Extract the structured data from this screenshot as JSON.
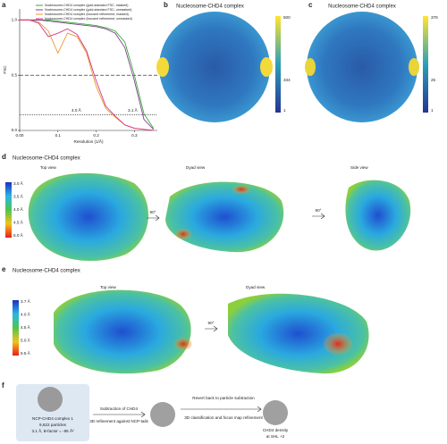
{
  "letters": [
    "a",
    "b",
    "c",
    "d",
    "e",
    "f"
  ],
  "chart_data": {
    "type": "line",
    "xlabel": "Resolution (1/Å)",
    "ylabel": "FSC",
    "x": [
      0,
      0.025,
      0.05,
      0.075,
      0.1,
      0.125,
      0.15,
      0.175,
      0.2,
      0.225,
      0.25,
      0.275,
      0.3,
      0.325,
      0.35
    ],
    "series": [
      {
        "name": "Nucleosome-CHD4 complex (gold-standard FSC, masked)",
        "color": "#3aa63a",
        "values": [
          1,
          1,
          1,
          1,
          0.99,
          0.98,
          0.97,
          0.96,
          0.95,
          0.93,
          0.9,
          0.8,
          0.5,
          0.15,
          0.02
        ]
      },
      {
        "name": "Nucleosome-CHD4 complex (gold-standard FSC, unmasked)",
        "color": "#7b3f8c",
        "values": [
          1,
          1,
          1,
          0.99,
          0.98,
          0.97,
          0.96,
          0.95,
          0.94,
          0.92,
          0.88,
          0.75,
          0.45,
          0.1,
          0.01
        ]
      },
      {
        "name": "Nucleosome-CHD4 complex (focused refinement, masked)",
        "color": "#e89a2c",
        "values": [
          1,
          1,
          0.98,
          0.9,
          0.7,
          0.88,
          0.85,
          0.7,
          0.4,
          0.2,
          0.12,
          0.05,
          0.02,
          0.01,
          0
        ]
      },
      {
        "name": "Nucleosome-CHD4 complex (focused refinement, unmasked)",
        "color": "#d9368b",
        "values": [
          1,
          1,
          0.97,
          0.85,
          0.88,
          0.92,
          0.87,
          0.72,
          0.45,
          0.22,
          0.13,
          0.05,
          0.02,
          0.01,
          0
        ]
      }
    ],
    "xlim": [
      0,
      0.36
    ],
    "ylim": [
      0,
      1.1
    ],
    "xticks": [
      {
        "value": 0,
        "label": "0.00"
      },
      0.1,
      0.2,
      0.3
    ],
    "yticks": [
      {
        "value": 0,
        "label": "0.0"
      },
      0.5,
      {
        "value": 1,
        "label": "1.0"
      }
    ],
    "thresholds": [
      0.5,
      0.143
    ],
    "annotations": [
      "4.0 Å",
      "3.1 Å"
    ]
  },
  "b": {
    "title": "Nucleosome-CHD4 complex",
    "colorbar": [
      "500",
      "334",
      "1"
    ]
  },
  "c": {
    "title": "Nucleosome-CHD4 complex",
    "colorbar": [
      "378",
      "25",
      "1"
    ]
  },
  "d": {
    "title": "Nucleosome-CHD4 complex",
    "views": [
      "Top view",
      "Dyad view",
      "Side view"
    ],
    "rotations": [
      "90°",
      "90°"
    ],
    "colorbar": [
      "3.0 Å",
      "3.5 Å",
      "4.0 Å",
      "4.5 Å",
      "5.0 Å"
    ]
  },
  "e": {
    "title": "Nucleosome-CHD4 complex",
    "views": [
      "Top view",
      "Dyad view"
    ],
    "rotations": [
      "90°"
    ],
    "colorbar": [
      "3.7 Å",
      "4.0 Å",
      "4.5 Å",
      "5.0 Å",
      "5.5 Å"
    ]
  },
  "f": {
    "box": [
      "NCP-CHD4 complex 1",
      "9,622 particles",
      "3.1 Å, B-factor = -85 Å²"
    ],
    "step1": [
      "Subtraction of CHD4",
      "3D refinement against NCP-tails"
    ],
    "step2": [
      "Revert back to particle subtraction",
      "3D classification and focus map refinement"
    ],
    "result": [
      "CHD4 density",
      "at SHL +2"
    ]
  }
}
